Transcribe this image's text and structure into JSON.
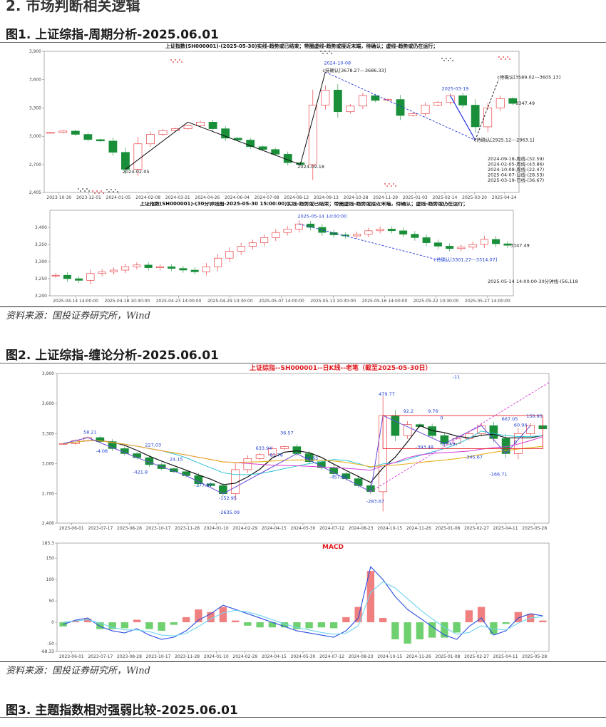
{
  "section_heading": "2. 市场判断相关逻辑",
  "figures": [
    {
      "title": "图1. 上证综指-周期分析-2025.06.01",
      "source": "资料来源：国投证券研究所，Wind"
    },
    {
      "title": "图2. 上证综指-缠论分析-2025.06.01",
      "source": "资料来源：国投证券研究所，Wind"
    },
    {
      "title": "图3. 主题指数相对强弱比较-2025.06.01"
    }
  ],
  "chart_data": [
    {
      "type": "line",
      "chart_role": "fig1-daily",
      "title": "上证指数(SH000001)-(2025-05-30)实线-趋势或已结束；带圈虚线-趋势或接近末端，待确认；虚线-趋势或仍在运行；",
      "ylim": [
        2405,
        3900
      ],
      "yticks": [
        2405,
        2700,
        3000,
        3300,
        3600,
        3900
      ],
      "ytick_labels": [
        "2,405",
        "2,700",
        "3,000",
        "3,300",
        "3,600",
        "3,900"
      ],
      "x_tick_labels": [
        "2023-10-30",
        "2023-12-01",
        "2024-01-05",
        "2024-02-08",
        "2024-03-21",
        "2024-04-26",
        "2024-06-04",
        "2024-07-08",
        "2024-08-12",
        "2024-09-13",
        "2024-10-28",
        "2024-11-29",
        "2025-01-03",
        "2025-02-14",
        "2025-03-20",
        "2025-04-24"
      ],
      "x": [
        "2023-10-30",
        "2023-11-15",
        "2023-12-01",
        "2023-12-20",
        "2024-01-05",
        "2024-01-22",
        "2024-02-05",
        "2024-02-20",
        "2024-03-05",
        "2024-03-21",
        "2024-04-08",
        "2024-04-26",
        "2024-05-20",
        "2024-06-04",
        "2024-06-20",
        "2024-07-08",
        "2024-07-25",
        "2024-08-12",
        "2024-08-28",
        "2024-09-13",
        "2024-09-18",
        "2024-09-30",
        "2024-10-08",
        "2024-10-18",
        "2024-10-28",
        "2024-11-12",
        "2024-11-29",
        "2024-12-16",
        "2025-01-03",
        "2025-01-20",
        "2025-02-14",
        "2025-03-03",
        "2025-03-19",
        "2025-04-02",
        "2025-04-07",
        "2025-04-24",
        "2025-05-14",
        "2025-05-30"
      ],
      "values": [
        3040,
        3055,
        3020,
        2965,
        2950,
        2830,
        2650,
        2920,
        3020,
        3060,
        3080,
        3110,
        3150,
        3080,
        2980,
        2960,
        2890,
        2860,
        2810,
        2720,
        2700,
        3330,
        3490,
        3260,
        3320,
        3430,
        3380,
        3390,
        3220,
        3240,
        3330,
        3360,
        3430,
        3330,
        3100,
        3300,
        3400,
        3347.49
      ],
      "annotations": [
        "2024-10-08",
        "c待确认[3678.27---3686.33]",
        "2025-03-19",
        "c待确认[3589.02---3605.13]",
        "3347.49",
        "c待确认[2925.12---2963.1]",
        "2024-02-05",
        "2024-09-18"
      ],
      "legend_lines": [
        "2024-09-18-周线-(32.59)",
        "2024-02-05-周线-(43.86)",
        "2024-10-08-周线-(22.47)",
        "2025-04-07-日线-(28.53)",
        "2025-03-19-日线-(36.67)"
      ]
    },
    {
      "type": "line",
      "chart_role": "fig1-30min",
      "title": "上证指数(SH000001)-(30分钟线图-2025-05-30 15:00:00)实线-趋势或已结束；带圈虚线-趋势或接近末端，待确认；虚线-趋势或仍在运行；",
      "ylim": [
        3200,
        3450
      ],
      "yticks": [
        3200,
        3250,
        3300,
        3350,
        3400
      ],
      "ytick_labels": [
        "3,200",
        "3,250",
        "3,300",
        "3,350",
        "3,400"
      ],
      "x_tick_labels": [
        "2025-04-14 14:00:00",
        "2025-04-18 10:30:00",
        "2025-04-23 14:00:00",
        "2025-04-29 10:30:00",
        "2025-05-07 14:00:00",
        "2025-05-13 10:30:00",
        "2025-05-16 14:00:00",
        "2025-05-22 10:30:00",
        "2025-05-27 14:00:00"
      ],
      "values": [
        3260,
        3250,
        3245,
        3265,
        3270,
        3275,
        3285,
        3290,
        3282,
        3285,
        3280,
        3275,
        3270,
        3285,
        3310,
        3330,
        3345,
        3355,
        3370,
        3385,
        3395,
        3410,
        3400,
        3385,
        3378,
        3375,
        3380,
        3390,
        3395,
        3390,
        3380,
        3370,
        3355,
        3345,
        3338,
        3342,
        3350,
        3365,
        3352,
        3347.49
      ],
      "annotations": [
        "2025-05-14 14:00:00",
        "c待确认[3301.27---3314.07]",
        "3347.49"
      ],
      "legend_lines": [
        "2025-05-14 14:00:00-30分钟线-(56,118"
      ]
    },
    {
      "type": "line",
      "chart_role": "fig2-kline",
      "title": "上证综指--SH000001--日K线--老笔（截至2025-05-30日）",
      "ylim": [
        2406,
        3900
      ],
      "yticks": [
        2406,
        2700,
        3000,
        3300,
        3600,
        3900
      ],
      "ytick_labels": [
        "2,406",
        "2,700",
        "3,000",
        "3,300",
        "3,600",
        "3,900"
      ],
      "x_tick_labels": [
        "2023-06-01",
        "2023-07-17",
        "2023-08-28",
        "2023-10-17",
        "2023-11-28",
        "2024-01-10",
        "2024-02-29",
        "2024-04-15",
        "2024-05-30",
        "2024-07-12",
        "2024-08-23",
        "2024-10-15",
        "2024-11-26",
        "2025-01-08",
        "2025-02-27",
        "2025-04-11",
        "2025-05-28"
      ],
      "values": [
        3200,
        3230,
        3260,
        3220,
        3150,
        3100,
        3060,
        2990,
        2950,
        2920,
        2880,
        2800,
        2780,
        2700,
        2940,
        3050,
        3090,
        3150,
        3170,
        3100,
        3020,
        2960,
        2900,
        2850,
        2780,
        2720,
        3480,
        3280,
        3390,
        3370,
        3280,
        3200,
        3250,
        3300,
        3380,
        3250,
        3100,
        3300,
        3380,
        3347
      ],
      "annotations": [
        "479.77",
        "92.2",
        "9.76",
        "0",
        "-27.49",
        "-393.48",
        "-345.67",
        "667.05",
        "150.95",
        "60.94",
        "0",
        "-166.71",
        "58.21",
        "-4.08",
        "227.03",
        "-421.8",
        "24.15",
        "-177.87",
        "-152.95",
        "-2635.09",
        "633.94",
        "36.57",
        "-81.78",
        "66.65",
        "-457.95",
        "-283.67",
        "-11"
      ]
    },
    {
      "type": "line",
      "chart_role": "fig2-macd",
      "title": "MACD",
      "ylim": [
        -68.33,
        185.3
      ],
      "yticks": [
        -68.33,
        -50,
        0,
        50,
        100,
        150,
        185.3
      ],
      "ytick_labels": [
        "-68.33",
        "-50",
        "0",
        "50",
        "100",
        "150",
        "185.3"
      ],
      "x_tick_labels": [
        "2023-06-01",
        "2023-07-17",
        "2023-08-28",
        "2023-10-17",
        "2023-11-28",
        "2024-01-10",
        "2024-02-29",
        "2024-04-15",
        "2024-05-30",
        "2024-07-12",
        "2024-08-23",
        "2024-10-15",
        "2024-11-26",
        "2025-01-08",
        "2025-02-27",
        "2025-04-11",
        "2025-05-28"
      ],
      "series": [
        {
          "values": [
            -5,
            5,
            10,
            -10,
            -20,
            -25,
            -15,
            -30,
            -40,
            -35,
            -20,
            5,
            20,
            40,
            30,
            20,
            10,
            0,
            -10,
            -20,
            -25,
            -30,
            -35,
            -20,
            10,
            130,
            100,
            60,
            30,
            10,
            -10,
            -30,
            -40,
            -10,
            10,
            -30,
            -20,
            10,
            20,
            15
          ]
        },
        {
          "values": [
            0,
            3,
            6,
            -2,
            -12,
            -18,
            -18,
            -22,
            -30,
            -32,
            -26,
            -10,
            8,
            22,
            28,
            24,
            16,
            6,
            -4,
            -12,
            -18,
            -24,
            -28,
            -26,
            -8,
            70,
            95,
            80,
            55,
            30,
            8,
            -12,
            -28,
            -24,
            -8,
            -16,
            -18,
            -2,
            10,
            13
          ]
        }
      ]
    }
  ]
}
